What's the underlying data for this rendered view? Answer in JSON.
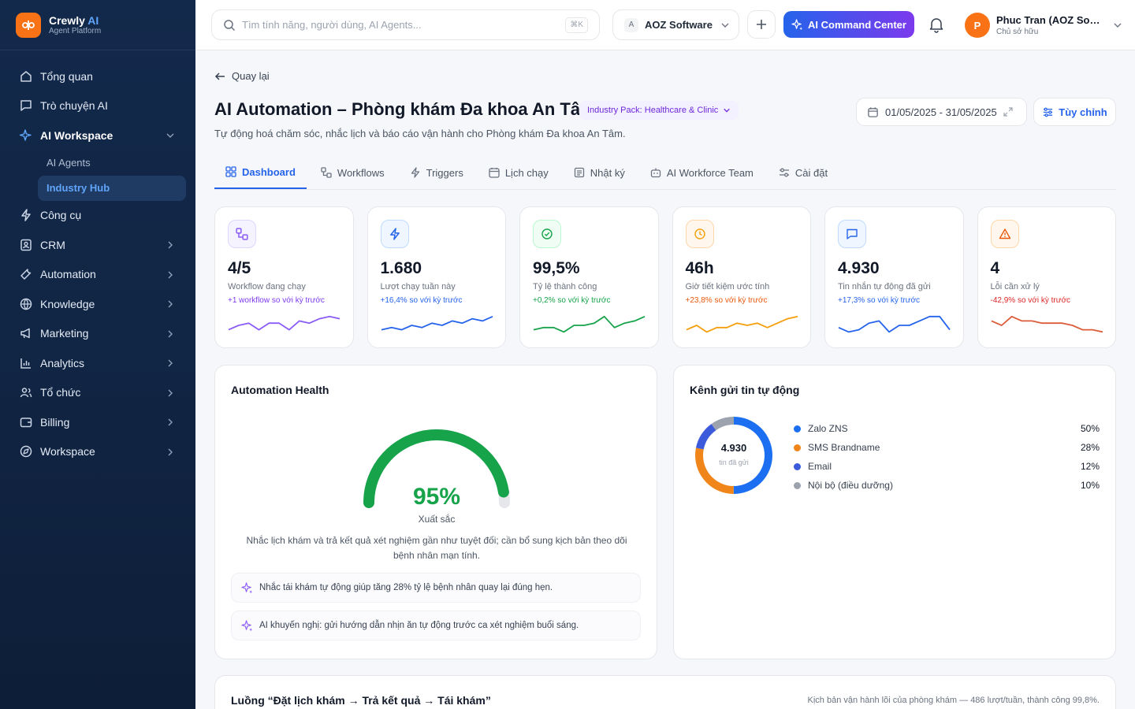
{
  "brand": {
    "name": "Crewly",
    "name_ai": "AI",
    "subtitle": "Agent Platform"
  },
  "sidebar": {
    "items": [
      {
        "label": "Tổng quan",
        "icon": "home-icon"
      },
      {
        "label": "Trò chuyện AI",
        "icon": "chat-icon"
      },
      {
        "label": "AI Workspace",
        "icon": "sparkles-icon"
      },
      {
        "label": "Công cụ",
        "icon": "bolt-icon"
      },
      {
        "label": "CRM",
        "icon": "contacts-icon"
      },
      {
        "label": "Automation",
        "icon": "wrench-icon"
      },
      {
        "label": "Knowledge",
        "icon": "globe-icon"
      },
      {
        "label": "Marketing",
        "icon": "megaphone-icon"
      },
      {
        "label": "Analytics",
        "icon": "bar-chart-icon"
      },
      {
        "label": "Tổ chức",
        "icon": "users-icon"
      },
      {
        "label": "Billing",
        "icon": "wallet-icon"
      },
      {
        "label": "Workspace",
        "icon": "compass-icon"
      }
    ],
    "sub_items": [
      {
        "label": "AI Agents"
      },
      {
        "label": "Industry Hub"
      }
    ]
  },
  "topbar": {
    "search_placeholder": "Tìm tính năng, người dùng, AI Agents...",
    "search_kbd": "⌘K",
    "org_badge": "A",
    "org_name": "AOZ Software",
    "command_label": "AI Command Center",
    "user_initial": "P",
    "user_name": "Phuc Tran (AOZ Software)",
    "user_role": "Chủ sở hữu"
  },
  "page": {
    "back_label": "Quay lại",
    "title": "AI Automation – Phòng khám Đa khoa An Tâm",
    "pack_label": "Industry Pack: Healthcare & Clinic",
    "subtitle": "Tự động hoá chăm sóc, nhắc lịch và báo cáo vận hành cho Phòng khám Đa khoa An Tâm.",
    "date_range": "01/05/2025 - 31/05/2025",
    "customize_label": "Tùy chỉnh"
  },
  "tabs": [
    {
      "label": "Dashboard",
      "icon": "grid-icon"
    },
    {
      "label": "Workflows",
      "icon": "workflow-icon"
    },
    {
      "label": "Triggers",
      "icon": "bolt-icon"
    },
    {
      "label": "Lịch chạy",
      "icon": "calendar-icon"
    },
    {
      "label": "Nhật ký",
      "icon": "log-icon"
    },
    {
      "label": "AI Workforce Team",
      "icon": "bot-icon"
    },
    {
      "label": "Cài đặt",
      "icon": "sliders-icon"
    }
  ],
  "kpis": [
    {
      "value": "4/5",
      "label": "Workflow đang chạy",
      "delta": "+1 workflow so với kỳ trước",
      "color": "#8b5cf6",
      "delta_color": "#7c3aed",
      "icon": "workflow-icon",
      "trend": [
        3,
        5,
        6,
        3,
        6,
        6,
        3,
        7,
        6,
        8,
        9,
        8
      ]
    },
    {
      "value": "1.680",
      "label": "Lượt chạy tuần này",
      "delta": "+16,4% so với kỳ trước",
      "color": "#2563eb",
      "delta_color": "#2563eb",
      "icon": "bolt-icon",
      "trend": [
        3,
        4,
        3,
        5,
        4,
        6,
        5,
        7,
        6,
        8,
        7,
        9
      ]
    },
    {
      "value": "99,5%",
      "label": "Tỷ lệ thành công",
      "delta": "+0,2% so với kỳ trước",
      "color": "#16a34a",
      "delta_color": "#16a34a",
      "icon": "check-circle-icon",
      "trend": [
        3,
        4,
        4,
        2,
        5,
        5,
        6,
        9,
        4,
        6,
        7,
        9
      ]
    },
    {
      "value": "46h",
      "label": "Giờ tiết kiệm ước tính",
      "delta": "+23,8% so với kỳ trước",
      "color": "#f59e0b",
      "delta_color": "#ea580c",
      "icon": "clock-icon",
      "trend": [
        3,
        5,
        2,
        4,
        4,
        6,
        5,
        6,
        4,
        6,
        8,
        9
      ]
    },
    {
      "value": "4.930",
      "label": "Tin nhắn tự động đã gửi",
      "delta": "+17,3% so với kỳ trước",
      "color": "#2563eb",
      "delta_color": "#2563eb",
      "icon": "message-icon",
      "trend": [
        4,
        2,
        3,
        6,
        7,
        2,
        5,
        5,
        7,
        9,
        9,
        3
      ]
    },
    {
      "value": "4",
      "label": "Lỗi cần xử lý",
      "delta": "-42,9% so với kỳ trước",
      "color": "#dc5b3b",
      "delta_color": "#dc2626",
      "icon": "alert-triangle-icon",
      "trend": [
        7,
        5,
        9,
        7,
        7,
        6,
        6,
        6,
        5,
        3,
        3,
        2
      ]
    }
  ],
  "health": {
    "title": "Automation Health",
    "score": 95,
    "score_label": "95%",
    "rating": "Xuất sắc",
    "description": "Nhắc lịch khám và trả kết quả xét nghiệm gần như tuyệt đối; cần bổ sung kịch bản theo dõi bệnh nhân mạn tính.",
    "tips": [
      "Nhắc tái khám tự động giúp tăng 28% tỷ lệ bệnh nhân quay lại đúng hẹn.",
      "AI khuyến nghị: gửi hướng dẫn nhịn ăn tự động trước ca xét nghiệm buổi sáng."
    ],
    "colors": {
      "good": "#16a34a",
      "track": "#e5e7eb"
    }
  },
  "channels": {
    "title": "Kênh gửi tin tự động",
    "total": "4.930",
    "total_label": "tin đã gửi",
    "items": [
      {
        "name": "Zalo ZNS",
        "pct": "50%",
        "value": 50,
        "color": "#1d6ff2"
      },
      {
        "name": "SMS Brandname",
        "pct": "28%",
        "value": 28,
        "color": "#f0861a"
      },
      {
        "name": "Email",
        "pct": "12%",
        "value": 12,
        "color": "#3b5bdb"
      },
      {
        "name": "Nội bộ (điều dưỡng)",
        "pct": "10%",
        "value": 10,
        "color": "#9ca3af"
      }
    ]
  },
  "flow": {
    "title": "Luồng “Đặt lịch khám → Trả kết quả → Tái khám”",
    "note": "Kịch bản vận hành lõi của phòng khám — 486 lượt/tuần, thành công 99,8%."
  }
}
